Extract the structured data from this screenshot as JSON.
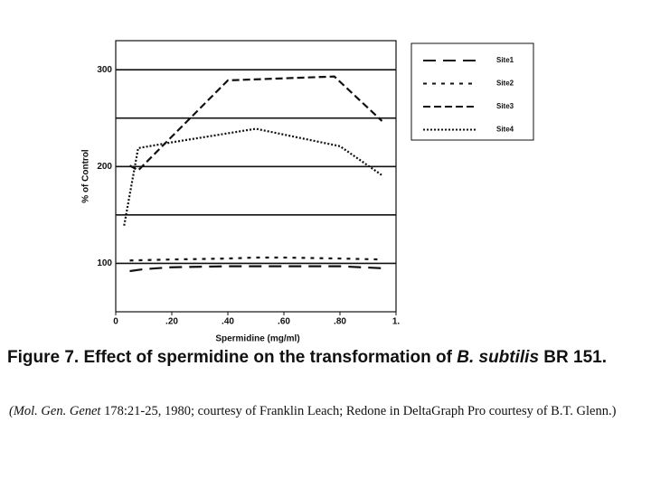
{
  "chart_data": {
    "type": "line",
    "ylabel": "% of Control",
    "xlabel": "Spermidine (mg/ml)",
    "xlim": [
      0,
      1
    ],
    "ylim": [
      50,
      330
    ],
    "xticks": [
      0,
      {
        "value": 0.2,
        "label": ".20"
      },
      {
        "value": 0.4,
        "label": ".40"
      },
      {
        "value": 0.6,
        "label": ".60"
      },
      {
        "value": 0.8,
        "label": ".80"
      },
      {
        "value": 1,
        "label": "1."
      }
    ],
    "yticks": [
      100,
      200,
      300
    ],
    "gridlines": [
      100,
      150,
      200,
      250,
      300
    ],
    "legend": "outside-top-right",
    "series": [
      {
        "name": "Site1",
        "color": "#111111",
        "dash": "14 8",
        "x": [
          0.05,
          0.1,
          0.2,
          0.4,
          0.5,
          0.6,
          0.8,
          0.95
        ],
        "values": [
          92,
          94,
          96,
          97,
          97,
          97,
          97,
          95
        ]
      },
      {
        "name": "Site2",
        "color": "#111111",
        "dash": "4 6",
        "x": [
          0.05,
          0.2,
          0.4,
          0.5,
          0.6,
          0.8,
          0.95
        ],
        "values": [
          103,
          104,
          105,
          106,
          106,
          105,
          104
        ]
      },
      {
        "name": "Site3",
        "color": "#111111",
        "dash": "8 4",
        "x": [
          0.05,
          0.08,
          0.4,
          0.78,
          0.95
        ],
        "values": [
          201,
          196,
          289,
          293,
          247
        ]
      },
      {
        "name": "Site4",
        "color": "#111111",
        "dash": "2 2",
        "x": [
          0.03,
          0.08,
          0.2,
          0.5,
          0.8,
          0.95
        ],
        "values": [
          139,
          219,
          225,
          239,
          221,
          191
        ]
      }
    ]
  },
  "caption": {
    "prefix": "Figure 7. Effect of spermidine on the transformation of ",
    "species": "B. subtilis",
    "suffix": " BR 151."
  },
  "source": {
    "journal": "(Mol. Gen. Genet",
    "rest": " 178:21-25, 1980; courtesy of Franklin Leach; Redone in DeltaGraph Pro courtesy of B.T. Glenn.)"
  }
}
